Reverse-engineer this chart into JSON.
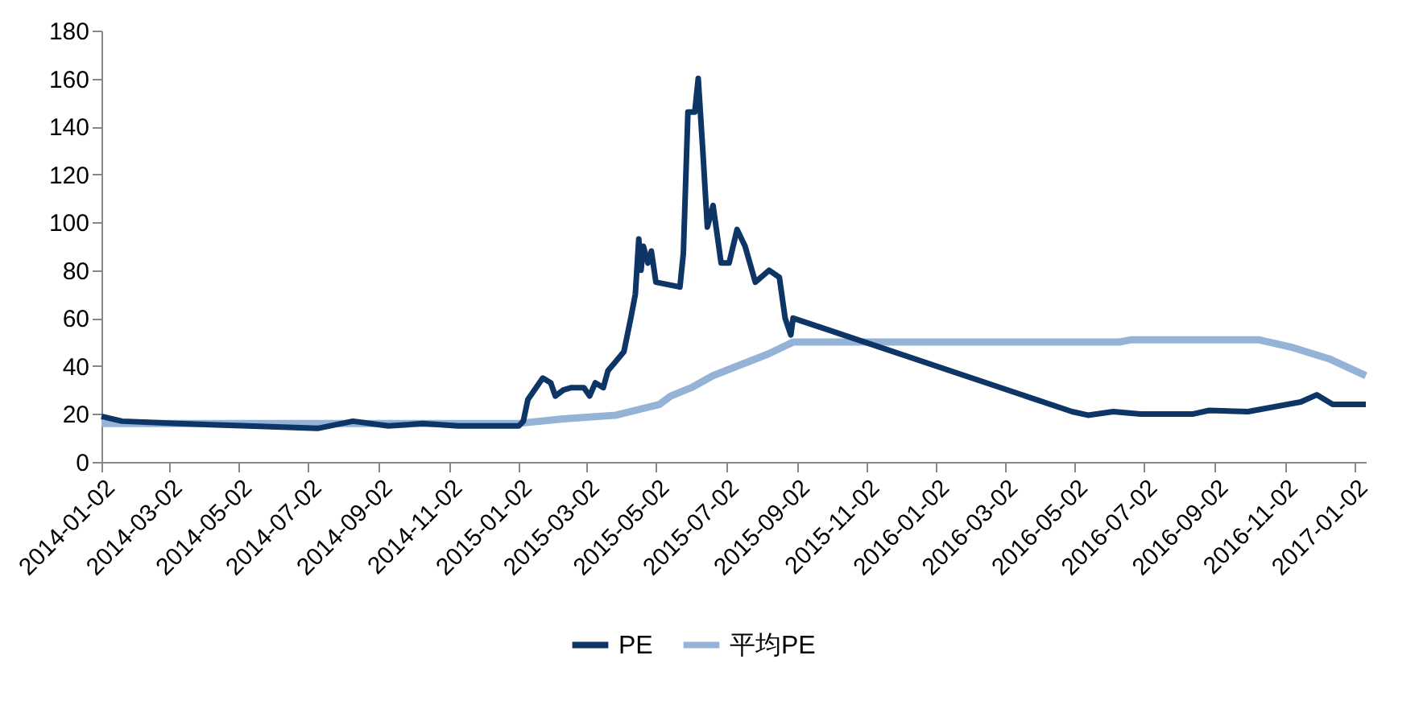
{
  "chart_data": {
    "type": "line",
    "legend": "bottom",
    "grid": false,
    "marker": "none",
    "line_style": "solid",
    "ylim": [
      0,
      180
    ],
    "yticks": [
      0,
      20,
      40,
      60,
      80,
      100,
      120,
      140,
      160,
      180
    ],
    "xlim": [
      "2014-01-02",
      "2017-01-12"
    ],
    "xticks": [
      "2014-01-02",
      "2014-03-02",
      "2014-05-02",
      "2014-07-02",
      "2014-09-02",
      "2014-11-02",
      "2015-01-02",
      "2015-03-02",
      "2015-05-02",
      "2015-07-02",
      "2015-09-02",
      "2015-11-02",
      "2016-01-02",
      "2016-03-02",
      "2016-05-02",
      "2016-07-02",
      "2016-09-02",
      "2016-11-02",
      "2017-01-02"
    ],
    "series": [
      {
        "name": "PE",
        "color": "#0d3565",
        "x": [
          "2014-01-02",
          "2014-01-20",
          "2014-03-10",
          "2014-05-10",
          "2014-07-10",
          "2014-08-10",
          "2014-09-10",
          "2014-10-10",
          "2014-11-10",
          "2015-01-02",
          "2015-01-06",
          "2015-01-10",
          "2015-01-23",
          "2015-01-30",
          "2015-02-03",
          "2015-02-10",
          "2015-02-17",
          "2015-02-28",
          "2015-03-05",
          "2015-03-10",
          "2015-03-17",
          "2015-03-21",
          "2015-03-28",
          "2015-04-04",
          "2015-04-10",
          "2015-04-14",
          "2015-04-17",
          "2015-04-19",
          "2015-04-21",
          "2015-04-25",
          "2015-04-28",
          "2015-05-02",
          "2015-05-23",
          "2015-05-26",
          "2015-05-30",
          "2015-06-05",
          "2015-06-08",
          "2015-06-12",
          "2015-06-16",
          "2015-06-21",
          "2015-06-28",
          "2015-07-05",
          "2015-07-12",
          "2015-07-19",
          "2015-07-28",
          "2015-08-09",
          "2015-08-18",
          "2015-08-23",
          "2015-08-28",
          "2015-08-30",
          "2016-04-30",
          "2016-05-14",
          "2016-06-05",
          "2016-06-29",
          "2016-08-14",
          "2016-08-28",
          "2016-10-01",
          "2016-11-16",
          "2016-11-30",
          "2016-12-14",
          "2017-01-12"
        ],
        "values": [
          19,
          17,
          16,
          15,
          14,
          17,
          15,
          16,
          15,
          15,
          17,
          26,
          35,
          33,
          27.5,
          30,
          31,
          31,
          27.5,
          33,
          31,
          38,
          42,
          46,
          60,
          70,
          93,
          80,
          90,
          83,
          88,
          75,
          73,
          87,
          146,
          146,
          160,
          130,
          98,
          107,
          83,
          83,
          97,
          90,
          75,
          80,
          77,
          60,
          53,
          60,
          21,
          19.5,
          21,
          20,
          20,
          21.5,
          21,
          25,
          28,
          24,
          24
        ]
      },
      {
        "name": "平均PE",
        "color": "#95b3d7",
        "x": [
          "2014-01-02",
          "2014-12-31",
          "2015-02-10",
          "2015-03-28",
          "2015-05-05",
          "2015-05-15",
          "2015-06-02",
          "2015-06-21",
          "2015-08-08",
          "2015-08-30",
          "2016-06-10",
          "2016-06-21",
          "2016-10-10",
          "2016-11-07",
          "2016-12-11",
          "2017-01-12"
        ],
        "values": [
          16,
          16,
          18,
          19.5,
          24,
          27.5,
          31,
          36,
          45,
          50,
          50,
          51,
          51,
          48,
          43,
          36
        ]
      }
    ]
  }
}
